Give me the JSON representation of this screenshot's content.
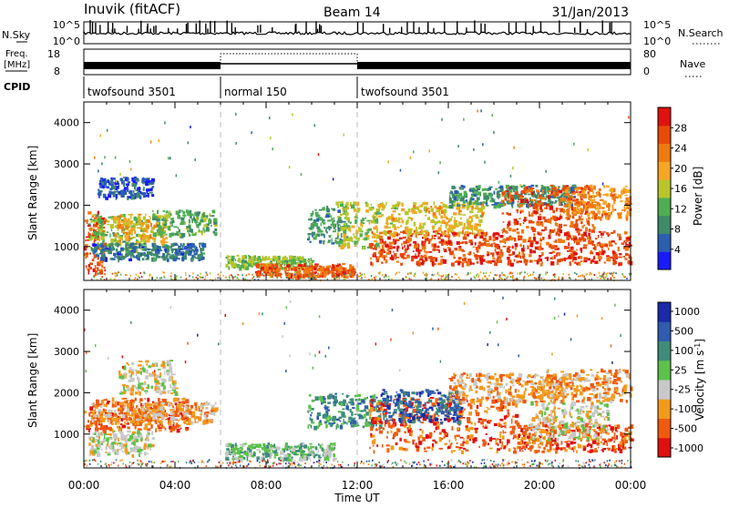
{
  "header": {
    "title": "Inuvik (fitACF)",
    "beam": "Beam 14",
    "date": "31/Jan/2013"
  },
  "top_panels": {
    "nsky": {
      "label": "N.Sky",
      "tick_top": "10^5",
      "tick_bottom": "10^0"
    },
    "nsearch": {
      "label": "N.Search",
      "tick_top": "10^5",
      "tick_bottom": "10^0"
    },
    "freq": {
      "label_line1": "Freq.",
      "label_line2": "[MHz]",
      "tick_top": "18",
      "tick_bottom": "8"
    },
    "nave": {
      "label": "Nave",
      "tick_top": "80",
      "tick_bottom": "0"
    },
    "cpid": {
      "label": "CPID",
      "segments": [
        {
          "name": "twofsound 3501",
          "start": 0,
          "end": 6
        },
        {
          "name": "normal 150",
          "start": 6,
          "end": 12
        },
        {
          "name": "twofsound 3501",
          "start": 12,
          "end": 24
        }
      ]
    }
  },
  "colors": {
    "power": [
      "#1a1aff",
      "#2b5fb0",
      "#3f8a6a",
      "#4fae52",
      "#b9c62a",
      "#f6a623",
      "#f07a10",
      "#e84a0a",
      "#e0120f"
    ],
    "velocity": [
      "#e01010",
      "#f05a10",
      "#f39a1a",
      "#c8c8c8",
      "#5cc24a",
      "#3f8c7a",
      "#2f5cae",
      "#1a2aa8"
    ]
  },
  "chart_data": [
    {
      "type": "heatmap",
      "panel": "power",
      "ylabel": "Slant Range [km]",
      "xlabel": "Time UT",
      "xlim": [
        0,
        24
      ],
      "ylim": [
        180,
        4500
      ],
      "xticks": [
        "00:00",
        "04:00",
        "08:00",
        "12:00",
        "16:00",
        "20:00",
        "00:00"
      ],
      "yticks": [
        1000,
        2000,
        3000,
        4000
      ],
      "colorbar": {
        "label": "Power [dB]",
        "ticks": [
          4,
          8,
          12,
          16,
          20,
          24,
          28
        ],
        "range": [
          0,
          32
        ]
      },
      "regions": [
        {
          "t0": 0.0,
          "t1": 0.9,
          "r0": 400,
          "r1": 1900,
          "level": 26
        },
        {
          "t0": 0.2,
          "t1": 2.5,
          "r0": 900,
          "r1": 1800,
          "level": 14
        },
        {
          "t0": 1.3,
          "t1": 3.6,
          "r0": 1100,
          "r1": 1800,
          "level": 19
        },
        {
          "t0": 3.0,
          "t1": 5.8,
          "r0": 1300,
          "r1": 1900,
          "level": 12
        },
        {
          "t0": 0.3,
          "t1": 5.2,
          "r0": 700,
          "r1": 1100,
          "level": 7
        },
        {
          "t0": 0.5,
          "t1": 3.0,
          "r0": 2200,
          "r1": 2700,
          "level": 5
        },
        {
          "t0": 6.2,
          "t1": 10.0,
          "r0": 500,
          "r1": 800,
          "level": 14
        },
        {
          "t0": 7.5,
          "t1": 11.8,
          "r0": 300,
          "r1": 600,
          "level": 26
        },
        {
          "t0": 9.8,
          "t1": 11.5,
          "r0": 1100,
          "r1": 2000,
          "level": 10
        },
        {
          "t0": 11.0,
          "t1": 13.0,
          "r0": 1000,
          "r1": 2100,
          "level": 16
        },
        {
          "t0": 12.5,
          "t1": 24.0,
          "r0": 600,
          "r1": 1400,
          "level": 27
        },
        {
          "t0": 13.0,
          "t1": 17.5,
          "r0": 1300,
          "r1": 2100,
          "level": 18
        },
        {
          "t0": 16.0,
          "t1": 21.5,
          "r0": 2000,
          "r1": 2500,
          "level": 9
        },
        {
          "t0": 18.3,
          "t1": 22.5,
          "r0": 1400,
          "r1": 2500,
          "level": 26
        },
        {
          "t0": 21.0,
          "t1": 24.0,
          "r0": 1700,
          "r1": 2500,
          "level": 22
        }
      ]
    },
    {
      "type": "heatmap",
      "panel": "velocity",
      "ylabel": "Slant Range [km]",
      "xlabel": "Time UT",
      "xlim": [
        0,
        24
      ],
      "ylim": [
        180,
        4500
      ],
      "xticks": [
        "00:00",
        "04:00",
        "08:00",
        "12:00",
        "16:00",
        "20:00",
        "00:00"
      ],
      "yticks": [
        1000,
        2000,
        3000,
        4000
      ],
      "colorbar": {
        "label": "Velocity [m s^-1]",
        "ticks": [
          "1000",
          "500",
          "100",
          "25",
          "-25",
          "-100",
          "-500",
          "-1000"
        ]
      },
      "regions": [
        {
          "t0": 0.0,
          "t1": 4.5,
          "r0": 1100,
          "r1": 1900,
          "class": 1
        },
        {
          "t0": 0.3,
          "t1": 5.8,
          "r0": 1300,
          "r1": 1800,
          "class": 2
        },
        {
          "t0": 0.2,
          "t1": 3.0,
          "r0": 500,
          "r1": 1100,
          "class": 3
        },
        {
          "t0": 1.5,
          "t1": 4.0,
          "r0": 2000,
          "r1": 2800,
          "class": 3
        },
        {
          "t0": 6.2,
          "t1": 11.0,
          "r0": 400,
          "r1": 800,
          "class": 4
        },
        {
          "t0": 9.8,
          "t1": 13.0,
          "r0": 1200,
          "r1": 2000,
          "class": 5
        },
        {
          "t0": 12.5,
          "t1": 19.0,
          "r0": 600,
          "r1": 1900,
          "class": 1
        },
        {
          "t0": 13.0,
          "t1": 16.5,
          "r0": 1300,
          "r1": 2100,
          "class": 6
        },
        {
          "t0": 16.0,
          "t1": 21.0,
          "r0": 1800,
          "r1": 2500,
          "class": 2
        },
        {
          "t0": 19.0,
          "t1": 24.0,
          "r0": 600,
          "r1": 1300,
          "class": 1
        },
        {
          "t0": 19.5,
          "t1": 23.0,
          "r0": 900,
          "r1": 1800,
          "class": 3
        },
        {
          "t0": 20.0,
          "t1": 24.0,
          "r0": 1800,
          "r1": 2600,
          "class": 2
        }
      ]
    }
  ]
}
